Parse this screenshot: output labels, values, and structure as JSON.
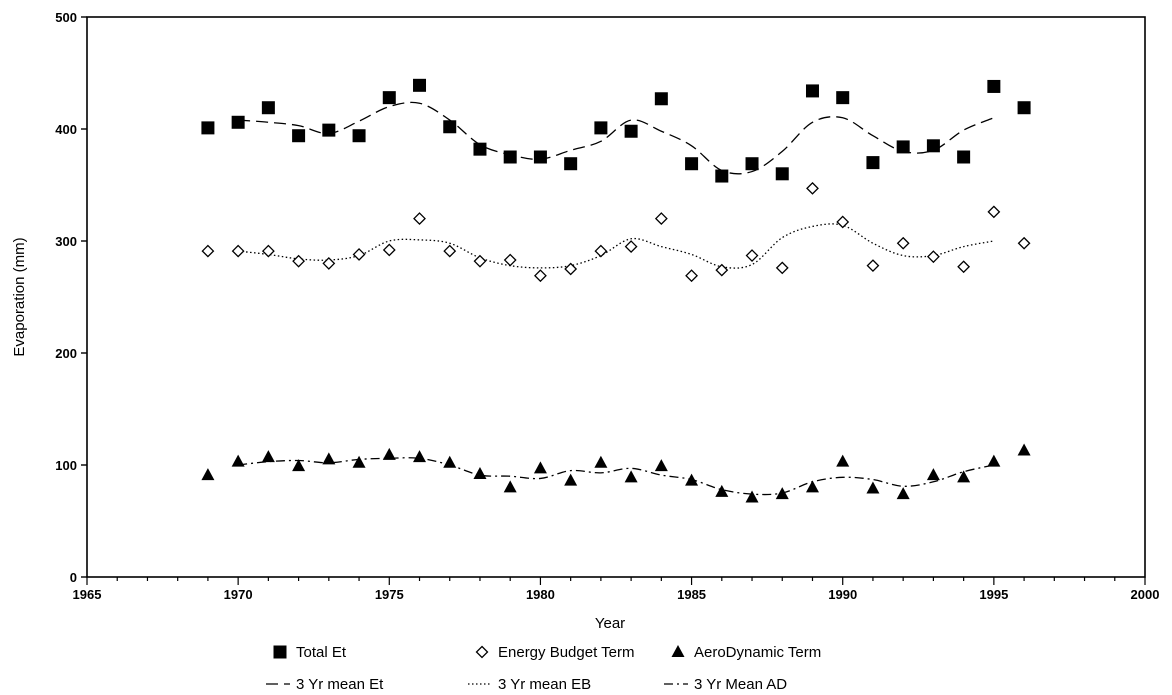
{
  "chart_data": {
    "type": "scatter",
    "title": "",
    "xlabel": "Year",
    "ylabel": "Evaporation (mm)",
    "xlim": [
      1965,
      2000
    ],
    "ylim": [
      0,
      500
    ],
    "xticks": [
      1965,
      1970,
      1975,
      1980,
      1985,
      1990,
      1995,
      2000
    ],
    "yticks": [
      0,
      100,
      200,
      300,
      400,
      500
    ],
    "grid": false,
    "legend_position": "bottom",
    "series": [
      {
        "name": "Total Et",
        "kind": "points",
        "marker": "filled-square",
        "x": [
          1969,
          1970,
          1971,
          1972,
          1973,
          1974,
          1975,
          1976,
          1977,
          1978,
          1979,
          1980,
          1981,
          1982,
          1983,
          1984,
          1985,
          1986,
          1987,
          1988,
          1989,
          1990,
          1991,
          1992,
          1993,
          1994,
          1995,
          1996
        ],
        "y": [
          401,
          406,
          419,
          394,
          399,
          394,
          428,
          439,
          402,
          382,
          375,
          375,
          369,
          401,
          398,
          427,
          369,
          358,
          369,
          360,
          434,
          428,
          370,
          384,
          385,
          375,
          438,
          419
        ]
      },
      {
        "name": "Energy Budget Term",
        "kind": "points",
        "marker": "open-diamond",
        "x": [
          1969,
          1970,
          1971,
          1972,
          1973,
          1974,
          1975,
          1976,
          1977,
          1978,
          1979,
          1980,
          1981,
          1982,
          1983,
          1984,
          1985,
          1986,
          1987,
          1988,
          1989,
          1990,
          1991,
          1992,
          1993,
          1994,
          1995,
          1996
        ],
        "y": [
          291,
          291,
          291,
          282,
          280,
          288,
          292,
          320,
          291,
          282,
          283,
          269,
          275,
          291,
          295,
          320,
          269,
          274,
          287,
          276,
          347,
          317,
          278,
          298,
          286,
          277,
          326,
          298
        ]
      },
      {
        "name": "AeroDynamic Term",
        "kind": "points",
        "marker": "filled-triangle",
        "x": [
          1969,
          1970,
          1971,
          1972,
          1973,
          1974,
          1975,
          1976,
          1977,
          1978,
          1979,
          1980,
          1981,
          1982,
          1983,
          1984,
          1985,
          1986,
          1987,
          1988,
          1989,
          1990,
          1991,
          1992,
          1993,
          1994,
          1995,
          1996
        ],
        "y": [
          91,
          103,
          107,
          99,
          105,
          102,
          109,
          107,
          102,
          92,
          80,
          97,
          86,
          102,
          89,
          99,
          86,
          76,
          71,
          74,
          80,
          103,
          79,
          74,
          91,
          89,
          103,
          113
        ]
      },
      {
        "name": "3 Yr mean Et",
        "kind": "line",
        "dash": "dashed",
        "x": [
          1970,
          1971,
          1972,
          1973,
          1974,
          1975,
          1976,
          1977,
          1978,
          1979,
          1980,
          1981,
          1982,
          1983,
          1984,
          1985,
          1986,
          1987,
          1988,
          1989,
          1990,
          1991,
          1992,
          1993,
          1994,
          1995
        ],
        "y": [
          408,
          406,
          403,
          396,
          407,
          420,
          423,
          408,
          386,
          377,
          373,
          381,
          389,
          408,
          398,
          385,
          363,
          362,
          380,
          406,
          410,
          394,
          380,
          381,
          399,
          410
        ]
      },
      {
        "name": "3 Yr mean EB",
        "kind": "line",
        "dash": "dotted",
        "x": [
          1970,
          1971,
          1972,
          1973,
          1974,
          1975,
          1976,
          1977,
          1978,
          1979,
          1980,
          1981,
          1982,
          1983,
          1984,
          1985,
          1986,
          1987,
          1988,
          1989,
          1990,
          1991,
          1992,
          1993,
          1994,
          1995
        ],
        "y": [
          291,
          288,
          284,
          283,
          287,
          300,
          301,
          298,
          285,
          278,
          276,
          278,
          287,
          302,
          295,
          288,
          277,
          279,
          303,
          313,
          314,
          298,
          287,
          287,
          295,
          300
        ]
      },
      {
        "name": "3 Yr Mean AD",
        "kind": "line",
        "dash": "dash-dot",
        "x": [
          1970,
          1971,
          1972,
          1973,
          1974,
          1975,
          1976,
          1977,
          1978,
          1979,
          1980,
          1981,
          1982,
          1983,
          1984,
          1985,
          1986,
          1987,
          1988,
          1989,
          1990,
          1991,
          1992,
          1993,
          1994,
          1995
        ],
        "y": [
          100,
          103,
          104,
          102,
          105,
          106,
          106,
          100,
          91,
          90,
          88,
          95,
          93,
          97,
          91,
          87,
          78,
          74,
          75,
          85,
          89,
          87,
          81,
          85,
          94,
          100
        ]
      }
    ]
  }
}
